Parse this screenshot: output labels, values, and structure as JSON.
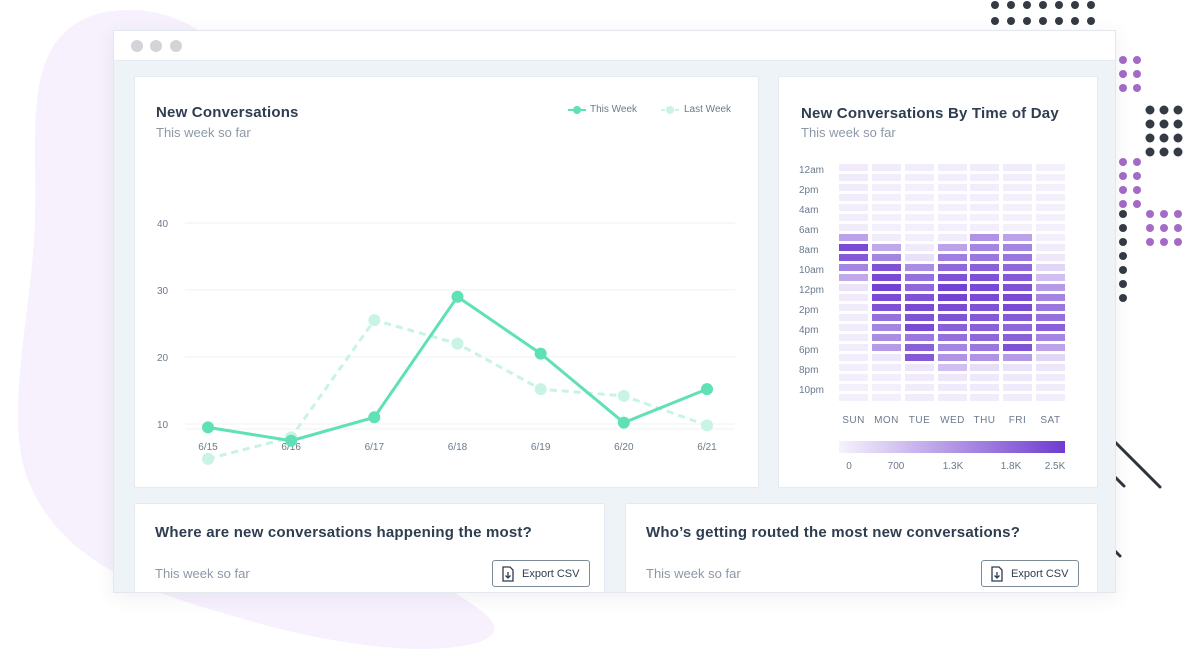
{
  "colors": {
    "this_week": "#5fe0b5",
    "last_week": "#c9f3e4",
    "heat_low": "#f6f3fc",
    "heat_high": "#6f3bd0",
    "dots_dark": "#353b45",
    "dots_purple": "#a36bc6"
  },
  "conversations_card": {
    "title": "New Conversations",
    "subtitle": "This week so far",
    "legend": {
      "this_week": "This Week",
      "last_week": "Last Week"
    }
  },
  "time_of_day_card": {
    "title": "New Conversations By Time of Day",
    "subtitle": "This week so far"
  },
  "locations_card": {
    "title": "Where are new conversations happening the most?",
    "subtitle": "This week so far",
    "export_label": "Export CSV",
    "export_icon": "export-file-icon"
  },
  "routing_card": {
    "title": "Who’s getting routed the most new conversations?",
    "subtitle": "This week so far",
    "export_label": "Export CSV",
    "export_icon": "export-file-icon"
  },
  "chart_data": [
    {
      "type": "line",
      "categories": [
        "6/15",
        "6/16",
        "6/17",
        "6/18",
        "6/19",
        "6/20",
        "6/21"
      ],
      "yticks": [
        10,
        20,
        30,
        40
      ],
      "ylim": [
        4,
        40
      ],
      "grid": true,
      "legend_position": "top-right",
      "series": [
        {
          "name": "This Week",
          "values": [
            9.5,
            7.5,
            11,
            29,
            20.5,
            10.2,
            15.2
          ],
          "style": "solid"
        },
        {
          "name": "Last Week",
          "values": [
            4.8,
            8,
            25.5,
            22,
            15.2,
            14.2,
            9.8
          ],
          "style": "dashed"
        }
      ]
    },
    {
      "type": "heatmap",
      "columns": [
        "SUN",
        "MON",
        "TUE",
        "WED",
        "THU",
        "FRI",
        "SAT"
      ],
      "row_labels": [
        "12am",
        "2pm",
        "4am",
        "6am",
        "8am",
        "10am",
        "12pm",
        "2pm",
        "4pm",
        "6pm",
        "8pm",
        "10pm"
      ],
      "rows_per_label": 2,
      "scale_ticks": [
        "0",
        "700",
        "1.3K",
        "1.8K",
        "2.5K"
      ],
      "scale_max": 2500,
      "values": [
        [
          120,
          90,
          80,
          80,
          90,
          90,
          60
        ],
        [
          110,
          80,
          70,
          70,
          80,
          80,
          50
        ],
        [
          100,
          70,
          60,
          70,
          80,
          70,
          40
        ],
        [
          90,
          60,
          50,
          60,
          70,
          60,
          40
        ],
        [
          80,
          60,
          50,
          60,
          70,
          60,
          40
        ],
        [
          80,
          60,
          50,
          50,
          60,
          60,
          40
        ],
        [
          90,
          60,
          50,
          60,
          70,
          60,
          50
        ],
        [
          1100,
          90,
          70,
          90,
          1300,
          1100,
          60
        ],
        [
          2300,
          1000,
          120,
          1100,
          1500,
          1500,
          90
        ],
        [
          2100,
          1500,
          250,
          1600,
          1700,
          1700,
          150
        ],
        [
          1500,
          2200,
          1400,
          1900,
          2000,
          1900,
          400
        ],
        [
          1000,
          2300,
          1800,
          2200,
          2200,
          2100,
          700
        ],
        [
          200,
          2400,
          1900,
          2400,
          2300,
          2200,
          1200
        ],
        [
          120,
          2300,
          2200,
          2400,
          2300,
          2300,
          1500
        ],
        [
          100,
          2200,
          2300,
          2300,
          2200,
          2300,
          1700
        ],
        [
          100,
          1800,
          2200,
          2200,
          2100,
          2100,
          1800
        ],
        [
          90,
          1500,
          2300,
          2000,
          2000,
          1900,
          2000
        ],
        [
          90,
          1400,
          1700,
          1800,
          1900,
          2000,
          1500
        ],
        [
          80,
          1200,
          2000,
          1500,
          1700,
          2200,
          1100
        ],
        [
          80,
          160,
          2100,
          1300,
          1300,
          1200,
          400
        ],
        [
          70,
          90,
          170,
          700,
          300,
          200,
          170
        ],
        [
          70,
          70,
          120,
          160,
          140,
          140,
          110
        ],
        [
          60,
          60,
          100,
          120,
          110,
          110,
          90
        ],
        [
          60,
          60,
          90,
          100,
          100,
          100,
          80
        ]
      ]
    }
  ]
}
